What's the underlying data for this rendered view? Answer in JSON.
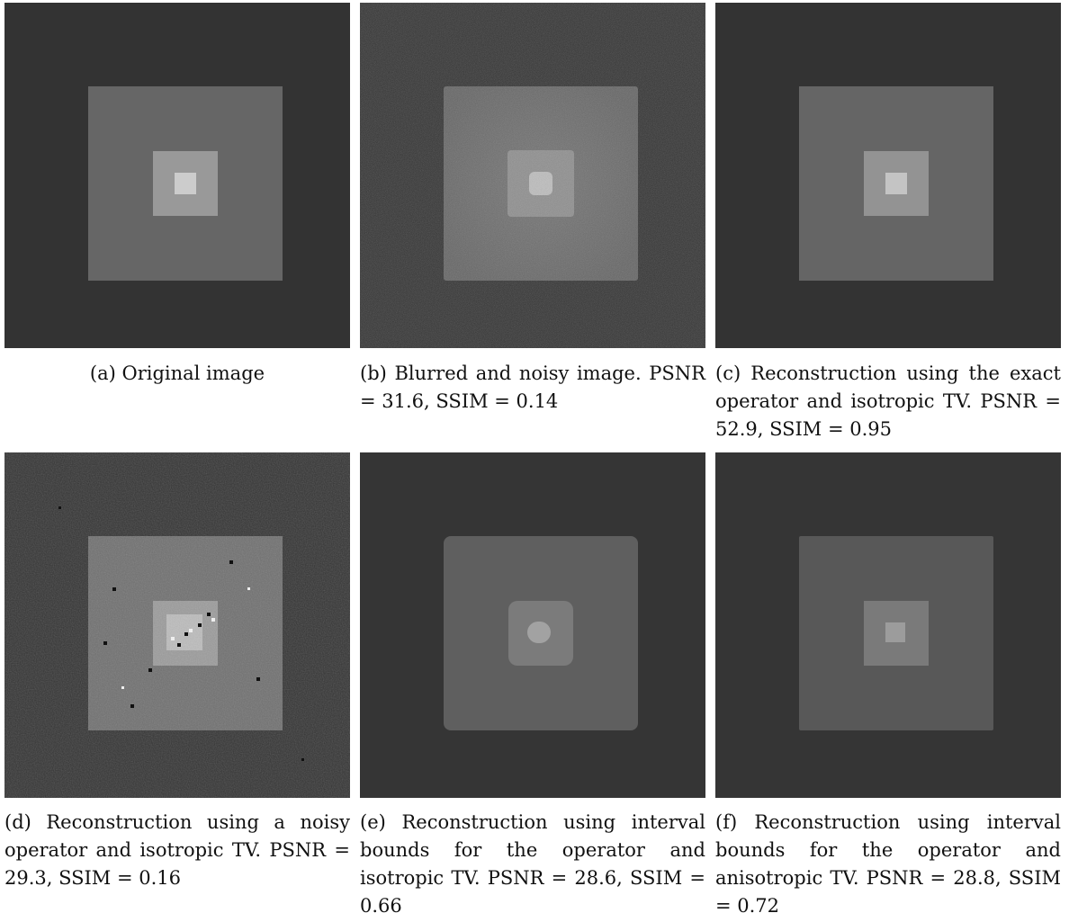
{
  "figure": {
    "panels": [
      {
        "id": "a",
        "caption": "(a) Original image"
      },
      {
        "id": "b",
        "caption": "(b) Blurred and noisy image. PSNR = 31.6, SSIM = 0.14"
      },
      {
        "id": "c",
        "caption": "(c) Reconstruction using the exact operator and isotropic TV. PSNR = 52.9, SSIM = 0.95"
      },
      {
        "id": "d",
        "caption": "(d) Reconstruction using a noisy operator and isotropic TV. PSNR = 29.3, SSIM = 0.16"
      },
      {
        "id": "e",
        "caption": "(e) Reconstruction using interval bounds for the operator and isotropic TV. PSNR = 28.6, SSIM = 0.66"
      },
      {
        "id": "f",
        "caption": "(f) Reconstruction using interval bounds for the operator and anisotropic TV. PSNR = 28.8, SSIM = 0.72"
      }
    ]
  }
}
